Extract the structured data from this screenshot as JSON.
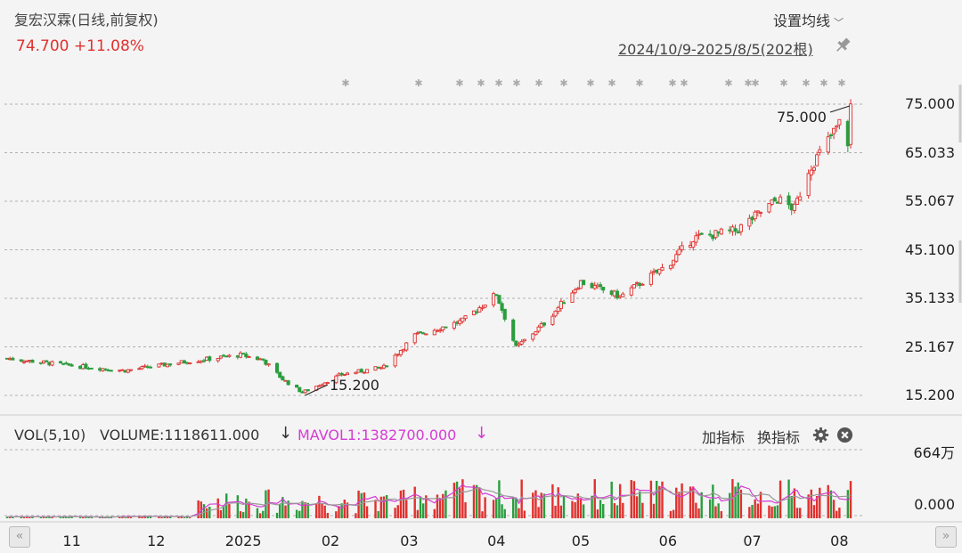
{
  "header": {
    "title": "复宏汉霖(日线,前复权)",
    "price_change": "74.700 +11.08%",
    "settings_label": "设置均线",
    "date_range": "2024/10/9-2025/8/5(202根)"
  },
  "indicator": {
    "vol_label": "VOL(5,10)",
    "volume_text": "VOLUME:1118611.000",
    "mavol_text": "MAVOL1:1382700.000",
    "arrow": "↓",
    "add_label": "加指标",
    "switch_label": "换指标"
  },
  "nav": {
    "prev": "«",
    "next": "»"
  },
  "colors": {
    "up": "#e0312e",
    "down": "#2a9d3e",
    "ma": "#d63bd6",
    "ma2": "#999999",
    "grid": "#999999"
  },
  "icons": [
    "pin-icon",
    "chevron-down-icon",
    "gear-icon",
    "close-circle-icon",
    "double-left-icon",
    "double-right-icon"
  ],
  "chart_data": [
    {
      "type": "candlestick",
      "title": "复宏汉霖(日线,前复权)",
      "ylim": [
        15.2,
        75.0
      ],
      "yticks": [
        "75.000",
        "65.033",
        "55.067",
        "45.100",
        "35.133",
        "25.167",
        "15.200"
      ],
      "xticks": [
        "11",
        "12",
        "2025",
        "02",
        "03",
        "04",
        "05",
        "06",
        "07",
        "08"
      ],
      "annotations": [
        {
          "text": "75.000",
          "type": "max",
          "value": 75.0
        },
        {
          "text": "15.200",
          "type": "min",
          "value": 15.2
        }
      ],
      "approx_closes": [
        {
          "date": "2024-10-09",
          "close": 22.8
        },
        {
          "date": "2024-11-01",
          "close": 21.3
        },
        {
          "date": "2024-11-20",
          "close": 20.3
        },
        {
          "date": "2024-12-10",
          "close": 22.0
        },
        {
          "date": "2024-12-31",
          "close": 23.5
        },
        {
          "date": "2025-01-08",
          "close": 22.5
        },
        {
          "date": "2025-01-15",
          "close": 18.5
        },
        {
          "date": "2025-01-22",
          "close": 15.8
        },
        {
          "date": "2025-02-05",
          "close": 19.5
        },
        {
          "date": "2025-02-20",
          "close": 21.0
        },
        {
          "date": "2025-03-03",
          "close": 27.5
        },
        {
          "date": "2025-03-20",
          "close": 30.5
        },
        {
          "date": "2025-04-01",
          "close": 36.0
        },
        {
          "date": "2025-04-08",
          "close": 25.0
        },
        {
          "date": "2025-04-18",
          "close": 30.0
        },
        {
          "date": "2025-05-01",
          "close": 38.5
        },
        {
          "date": "2025-05-15",
          "close": 35.5
        },
        {
          "date": "2025-06-01",
          "close": 42.0
        },
        {
          "date": "2025-06-10",
          "close": 47.5
        },
        {
          "date": "2025-06-25",
          "close": 49.0
        },
        {
          "date": "2025-07-01",
          "close": 51.5
        },
        {
          "date": "2025-07-10",
          "close": 55.5
        },
        {
          "date": "2025-07-16",
          "close": 53.5
        },
        {
          "date": "2025-07-21",
          "close": 61.5
        },
        {
          "date": "2025-07-28",
          "close": 67.5
        },
        {
          "date": "2025-08-01",
          "close": 71.0
        },
        {
          "date": "2025-08-04",
          "close": 67.2
        },
        {
          "date": "2025-08-05",
          "close": 74.7
        }
      ]
    },
    {
      "type": "bar",
      "title": "VOL(5,10)",
      "series": [
        {
          "name": "VOLUME",
          "last": 1118611.0
        },
        {
          "name": "MAVOL1",
          "last": 1382700.0
        }
      ],
      "yticks": [
        "664万",
        "0.000"
      ],
      "ylim": [
        0,
        6640000
      ]
    }
  ]
}
